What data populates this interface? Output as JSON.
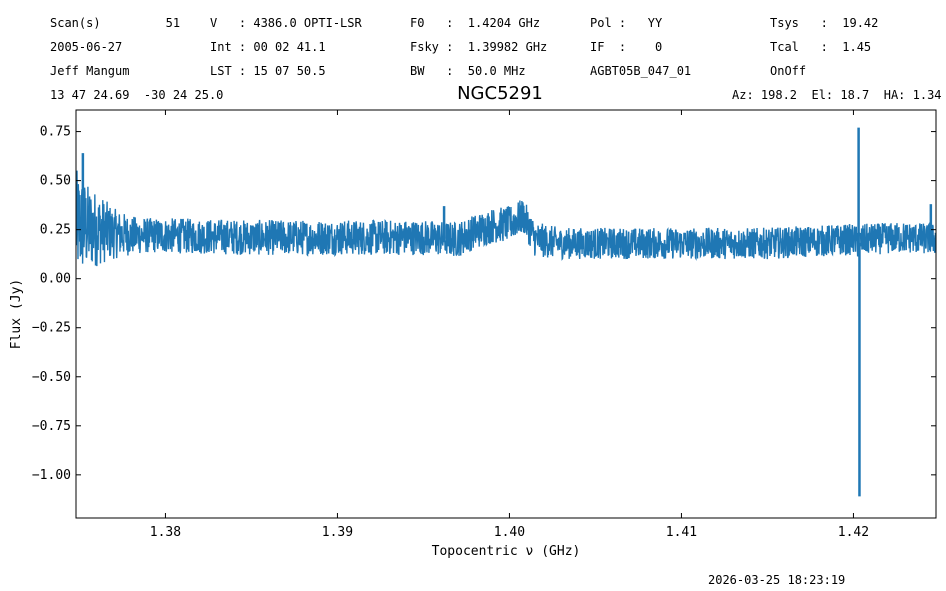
{
  "header": {
    "rows": [
      [
        "Scan(s)         51",
        "V   : 4386.0 OPTI-LSR",
        "F0   :  1.4204 GHz",
        "Pol :   YY",
        "Tsys   :  19.42"
      ],
      [
        "2005-06-27",
        "Int : 00 02 41.1",
        "Fsky :  1.39982 GHz",
        "IF  :    0",
        "Tcal   :  1.45"
      ],
      [
        "Jeff Mangum",
        "LST : 15 07 50.5",
        "BW   :  50.0 MHz",
        "AGBT05B_047_01",
        "OnOff"
      ]
    ],
    "coords": "13 47 24.69  -30 24 25.0",
    "pointing": "Az: 198.2  El: 18.7  HA: 1.34"
  },
  "timestamp": "2026-03-25 18:23:19",
  "chart_data": {
    "type": "line",
    "title": "NGC5291",
    "xlabel": "Topocentric ν (GHz)",
    "ylabel": "Flux (Jy)",
    "xlim": [
      1.3748,
      1.4248
    ],
    "ylim": [
      -1.22,
      0.86
    ],
    "xticks": [
      1.38,
      1.39,
      1.4,
      1.41,
      1.42
    ],
    "xtick_labels": [
      "1.38",
      "1.39",
      "1.40",
      "1.41",
      "1.42"
    ],
    "yticks": [
      0.75,
      0.5,
      0.25,
      0.0,
      -0.25,
      -0.5,
      -0.75,
      -1.0
    ],
    "ytick_labels": [
      "0.75",
      "0.50",
      "0.25",
      "0.00",
      "−0.25",
      "−0.50",
      "−0.75",
      "−1.00"
    ],
    "grid": false,
    "line_color": "#1f77b4",
    "series": [
      {
        "x": [
          1.3748,
          1.3755,
          1.3762,
          1.377,
          1.378,
          1.379,
          1.38,
          1.385,
          1.39,
          1.395,
          1.397,
          1.398,
          1.399,
          1.4,
          1.4008,
          1.4015,
          1.403,
          1.41,
          1.415,
          1.42,
          1.4203,
          1.4206,
          1.423,
          1.4248
        ],
        "y": [
          0.28,
          0.26,
          0.25,
          0.23,
          0.22,
          0.22,
          0.22,
          0.21,
          0.21,
          0.21,
          0.2,
          0.24,
          0.27,
          0.28,
          0.32,
          0.2,
          0.18,
          0.18,
          0.18,
          0.2,
          0.18,
          0.2,
          0.21,
          0.2
        ],
        "noise": [
          0.28,
          0.22,
          0.18,
          0.13,
          0.1,
          0.09,
          0.09,
          0.09,
          0.09,
          0.09,
          0.09,
          0.09,
          0.09,
          0.09,
          0.09,
          0.09,
          0.08,
          0.08,
          0.08,
          0.08,
          0.08,
          0.08,
          0.08,
          0.08
        ]
      }
    ],
    "spikes": [
      {
        "x": 1.3752,
        "y": 0.64
      },
      {
        "x": 1.3962,
        "y": 0.37
      },
      {
        "x": 1.4203,
        "y": 0.77
      },
      {
        "x": 1.42035,
        "y": -1.11
      },
      {
        "x": 1.4245,
        "y": 0.38
      }
    ]
  }
}
